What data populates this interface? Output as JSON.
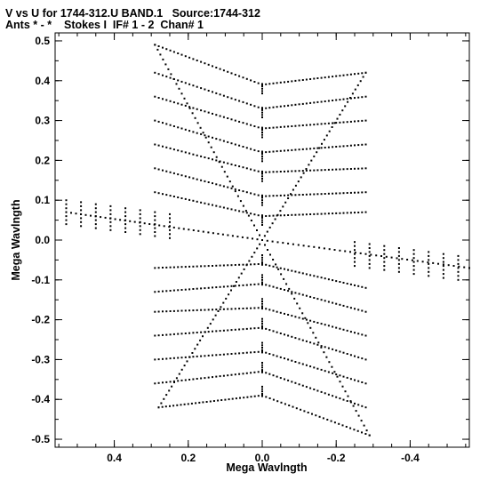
{
  "header": {
    "line1": "V vs U for 1744-312.U BAND.1   Source:1744-312",
    "line2": "Ants * - *    Stokes I  IF# 1 - 2  Chan# 1"
  },
  "chart_data": {
    "type": "scatter",
    "xlabel": "Mega Wavlngth",
    "ylabel": "Mega Wavlngth",
    "xlim": [
      0.56,
      -0.56
    ],
    "ylim": [
      -0.52,
      0.52
    ],
    "x_reversed": true,
    "grid": false,
    "x_ticks": [
      0.4,
      0.2,
      0.0,
      -0.2,
      -0.4
    ],
    "x_tick_labels": [
      "0.4",
      "0.2",
      "0.0",
      "-0.2",
      "-0.4"
    ],
    "y_ticks": [
      0.5,
      0.4,
      0.3,
      0.2,
      0.1,
      0.0,
      -0.1,
      -0.2,
      -0.3,
      -0.4,
      -0.5
    ],
    "y_tick_labels": [
      "0.5",
      "0.4",
      "0.3",
      "0.2",
      "0.1",
      "0.0",
      "-0.1",
      "-0.2",
      "-0.3",
      "-0.4",
      "-0.5"
    ],
    "point_color": "#000000",
    "series": [
      {
        "arm_a": {
          "start": [
            0.29,
            0.49
          ],
          "end": [
            -0.29,
            -0.49
          ]
        },
        "arm_b": {
          "start": [
            0.53,
            0.07
          ],
          "end": [
            -0.56,
            -0.07
          ]
        },
        "arm_c": {
          "start": [
            0.28,
            -0.42
          ],
          "end": [
            -0.28,
            0.42
          ]
        },
        "tracks": [
          {
            "u": [
              0.29,
              0.0,
              -0.28
            ],
            "v": [
              0.49,
              0.39,
              0.42
            ]
          },
          {
            "u": [
              0.29,
              0.0,
              -0.28
            ],
            "v": [
              0.42,
              0.33,
              0.36
            ]
          },
          {
            "u": [
              0.29,
              0.0,
              -0.28
            ],
            "v": [
              0.36,
              0.28,
              0.3
            ]
          },
          {
            "u": [
              0.29,
              0.0,
              -0.28
            ],
            "v": [
              0.3,
              0.22,
              0.24
            ]
          },
          {
            "u": [
              0.29,
              0.0,
              -0.28
            ],
            "v": [
              0.24,
              0.17,
              0.18
            ]
          },
          {
            "u": [
              0.29,
              0.0,
              -0.28
            ],
            "v": [
              0.18,
              0.11,
              0.12
            ]
          },
          {
            "u": [
              0.29,
              0.0,
              -0.28
            ],
            "v": [
              0.12,
              0.06,
              0.07
            ]
          },
          {
            "u": [
              0.29,
              0.0,
              -0.28
            ],
            "v": [
              -0.07,
              -0.06,
              -0.12
            ]
          },
          {
            "u": [
              0.29,
              0.0,
              -0.28
            ],
            "v": [
              -0.13,
              -0.11,
              -0.18
            ]
          },
          {
            "u": [
              0.29,
              0.0,
              -0.28
            ],
            "v": [
              -0.18,
              -0.17,
              -0.24
            ]
          },
          {
            "u": [
              0.29,
              0.0,
              -0.28
            ],
            "v": [
              -0.24,
              -0.22,
              -0.3
            ]
          },
          {
            "u": [
              0.29,
              0.0,
              -0.28
            ],
            "v": [
              -0.3,
              -0.28,
              -0.36
            ]
          },
          {
            "u": [
              0.29,
              0.0,
              -0.28
            ],
            "v": [
              -0.36,
              -0.33,
              -0.42
            ]
          },
          {
            "u": [
              0.28,
              0.0,
              -0.29
            ],
            "v": [
              -0.42,
              -0.39,
              -0.49
            ]
          }
        ],
        "spokes_left_u": [
          0.53,
          0.49,
          0.45,
          0.41,
          0.37,
          0.33,
          0.29,
          0.25
        ],
        "spokes_right_u": [
          -0.25,
          -0.29,
          -0.33,
          -0.37,
          -0.41,
          -0.45,
          -0.49,
          -0.53
        ],
        "center_column_v": [
          0.38,
          0.32,
          0.27,
          0.21,
          0.16,
          0.1,
          0.05,
          -0.05,
          -0.1,
          -0.16,
          -0.21,
          -0.27,
          -0.32,
          -0.38
        ]
      }
    ]
  }
}
